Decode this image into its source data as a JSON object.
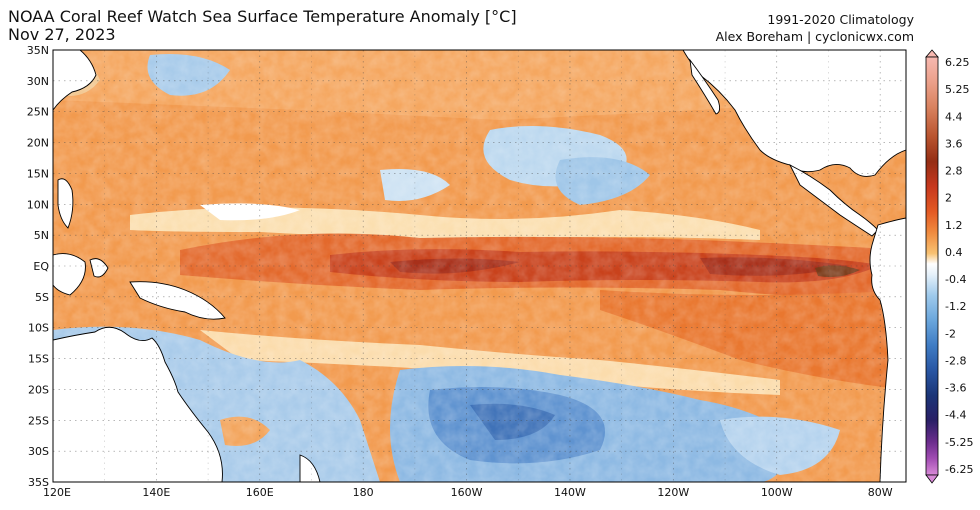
{
  "header": {
    "title": "NOAA Coral Reef Watch Sea Surface Temperature Anomaly [°C]",
    "date": "Nov 27, 2023",
    "climatology": "1991-2020 Climatology",
    "credit": "Alex Boreham | cyclonicwx.com"
  },
  "map": {
    "lat_labels": [
      "35N",
      "30N",
      "25N",
      "20N",
      "15N",
      "10N",
      "5N",
      "EQ",
      "5S",
      "10S",
      "15S",
      "20S",
      "25S",
      "30S",
      "35S"
    ],
    "lon_labels": [
      "120E",
      "140E",
      "160E",
      "180",
      "160W",
      "140W",
      "120W",
      "100W",
      "80W"
    ],
    "lon_range": [
      120,
      285
    ],
    "lat_range": [
      35,
      -35
    ]
  },
  "colorbar": {
    "labels": [
      "6.25",
      "5.25",
      "4.4",
      "3.6",
      "2.8",
      "2",
      "1.2",
      "0.4",
      "-0.4",
      "-1.2",
      "-2",
      "-2.8",
      "-3.6",
      "-4.4",
      "-5.25",
      "-6.25"
    ],
    "colors": [
      "#f7b8b0",
      "#eba08a",
      "#d9825f",
      "#b9542f",
      "#952e14",
      "#c7381e",
      "#e35a24",
      "#f08b3f",
      "#f8b862",
      "#fbe2a0",
      "#ffffff",
      "#d5e9f7",
      "#9fcaec",
      "#6aa6dc",
      "#3f7cc4",
      "#2956a3",
      "#1b3577",
      "#2a1f66",
      "#6a2c8c",
      "#a04bb2",
      "#d98ad8"
    ]
  }
}
